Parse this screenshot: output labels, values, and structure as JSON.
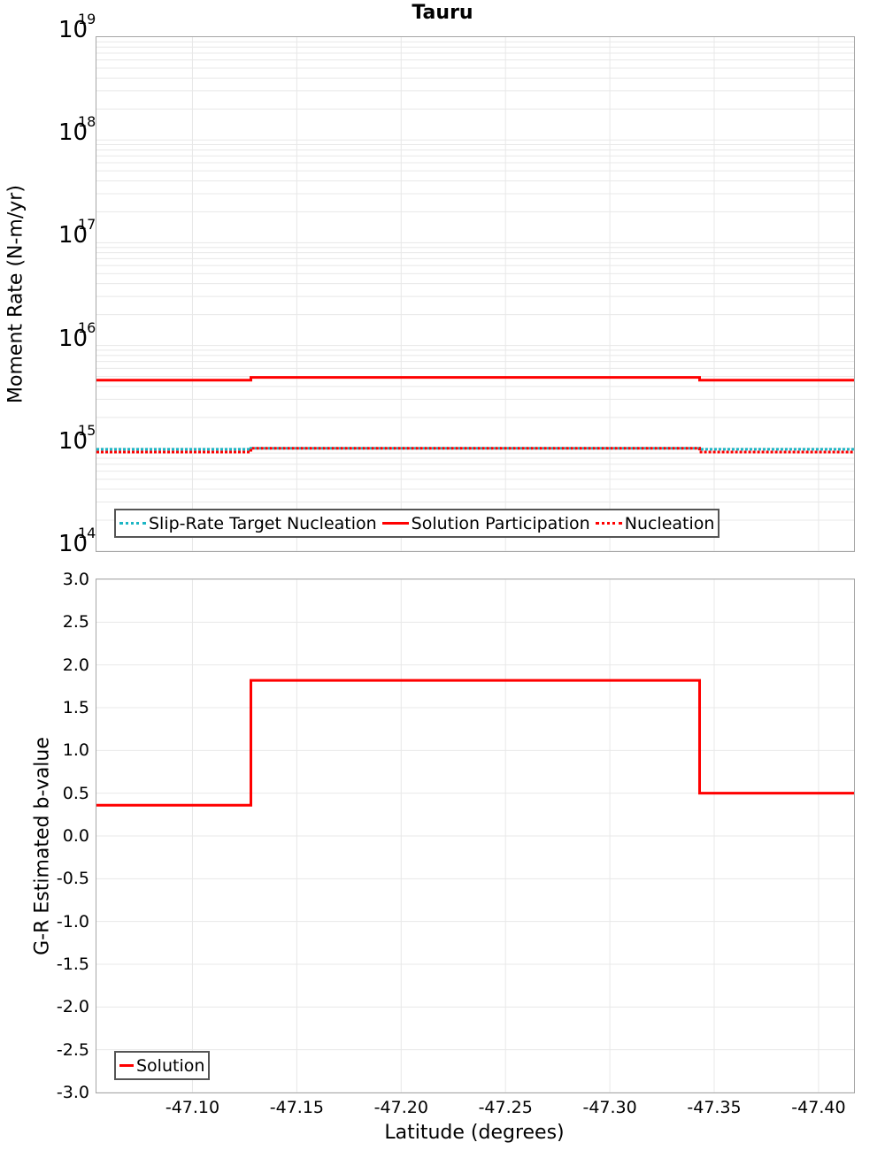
{
  "title": "Tauru",
  "colors": {
    "solution": "#ff0000",
    "nucleation": "#ff0000",
    "target": "#1cb5c4",
    "grid": "#e8e8e8",
    "frame": "#a6a6a6"
  },
  "top_panel": {
    "ylabel": "Moment Rate (N-m/yr)",
    "y_ticks": [
      {
        "base": "10",
        "exp": "19"
      },
      {
        "base": "10",
        "exp": "18"
      },
      {
        "base": "10",
        "exp": "17"
      },
      {
        "base": "10",
        "exp": "16"
      },
      {
        "base": "10",
        "exp": "15"
      },
      {
        "base": "10",
        "exp": "14"
      }
    ],
    "legend": [
      {
        "label": "Slip-Rate Target Nucleation",
        "style": "dotted-teal"
      },
      {
        "label": "Solution Participation",
        "style": "solid-red"
      },
      {
        "label": "Nucleation",
        "style": "dotted-red"
      }
    ]
  },
  "bottom_panel": {
    "ylabel": "G-R Estimated b-value",
    "y_ticks": [
      "3.0",
      "2.5",
      "2.0",
      "1.5",
      "1.0",
      "0.5",
      "0.0",
      "-0.5",
      "-1.0",
      "-1.5",
      "-2.0",
      "-2.5",
      "-3.0"
    ],
    "legend": [
      {
        "label": "Solution",
        "style": "solid-red"
      }
    ]
  },
  "x_axis": {
    "label": "Latitude (degrees)",
    "ticks": [
      "-47.10",
      "-47.15",
      "-47.20",
      "-47.25",
      "-47.30",
      "-47.35",
      "-47.40"
    ]
  },
  "chart_data": [
    {
      "type": "line",
      "title": "Tauru",
      "xlabel": "Latitude (degrees)",
      "ylabel": "Moment Rate (N-m/yr)",
      "yscale": "log",
      "ylim": [
        100000000000000.0,
        1e+19
      ],
      "xlim": [
        -47.054,
        -47.417
      ],
      "x_tick_labels": [
        "-47.10",
        "-47.15",
        "-47.20",
        "-47.25",
        "-47.30",
        "-47.35",
        "-47.40"
      ],
      "grid": true,
      "legend_position": "lower-left",
      "step_segments_x": [
        [
          -47.054,
          -47.128
        ],
        [
          -47.128,
          -47.27
        ],
        [
          -47.27,
          -47.343
        ],
        [
          -47.343,
          -47.417
        ]
      ],
      "series": [
        {
          "name": "Slip-Rate Target Nucleation",
          "style": "dotted",
          "color": "#1cb5c4",
          "values": [
            980000000000000.0,
            1000000000000000.0,
            1000000000000000.0,
            980000000000000.0
          ]
        },
        {
          "name": "Solution Participation",
          "style": "solid",
          "color": "#ff0000",
          "values": [
            4600000000000000.0,
            4900000000000000.0,
            4900000000000000.0,
            4600000000000000.0
          ]
        },
        {
          "name": "Nucleation",
          "style": "dotted",
          "color": "#ff0000",
          "values": [
            920000000000000.0,
            1000000000000000.0,
            1000000000000000.0,
            920000000000000.0
          ]
        }
      ]
    },
    {
      "type": "line",
      "title": "",
      "xlabel": "Latitude (degrees)",
      "ylabel": "G-R Estimated b-value",
      "ylim": [
        -3.0,
        3.0
      ],
      "xlim": [
        -47.054,
        -47.417
      ],
      "x_tick_labels": [
        "-47.10",
        "-47.15",
        "-47.20",
        "-47.25",
        "-47.30",
        "-47.35",
        "-47.40"
      ],
      "grid": true,
      "legend_position": "lower-left",
      "step_segments_x": [
        [
          -47.054,
          -47.128
        ],
        [
          -47.128,
          -47.27
        ],
        [
          -47.27,
          -47.343
        ],
        [
          -47.343,
          -47.417
        ]
      ],
      "series": [
        {
          "name": "Solution",
          "style": "solid",
          "color": "#ff0000",
          "values": [
            0.36,
            1.82,
            1.82,
            0.5
          ]
        }
      ]
    }
  ]
}
